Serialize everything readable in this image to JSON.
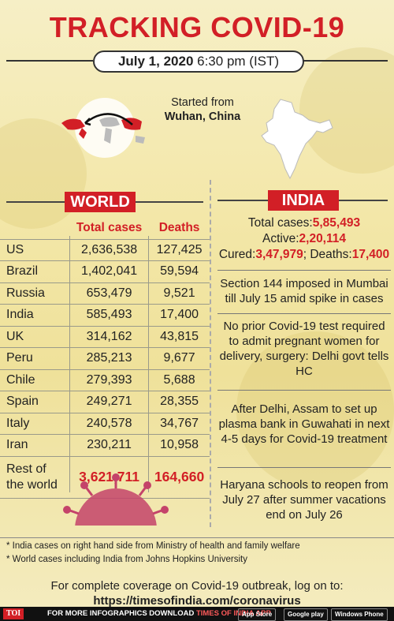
{
  "title": "TRACKING COVID-19",
  "date": {
    "bold": "July 1, 2020",
    "rest": " 6:30 pm (IST)"
  },
  "origin": {
    "line1": "Started from",
    "line2": "Wuhan, China"
  },
  "world": {
    "heading": "WORLD",
    "col_total": "Total cases",
    "col_deaths": "Deaths",
    "rows": [
      {
        "country": "US",
        "total": "2,636,538",
        "deaths": "127,425"
      },
      {
        "country": "Brazil",
        "total": "1,402,041",
        "deaths": "59,594"
      },
      {
        "country": "Russia",
        "total": "653,479",
        "deaths": "9,521"
      },
      {
        "country": "India",
        "total": "585,493",
        "deaths": "17,400"
      },
      {
        "country": "UK",
        "total": "314,162",
        "deaths": "43,815"
      },
      {
        "country": "Peru",
        "total": "285,213",
        "deaths": "9,677"
      },
      {
        "country": "Chile",
        "total": "279,393",
        "deaths": "5,688"
      },
      {
        "country": "Spain",
        "total": "249,271",
        "deaths": "28,355"
      },
      {
        "country": "Italy",
        "total": "240,578",
        "deaths": "34,767"
      },
      {
        "country": "Iran",
        "total": "230,211",
        "deaths": "10,958"
      }
    ],
    "rest_label_1": "Rest of",
    "rest_label_2": "the world",
    "rest_total": "3,621,711",
    "rest_deaths": "164,660"
  },
  "india": {
    "heading": "INDIA",
    "total_label": "Total cases:",
    "total_value": "5,85,493",
    "active_label": "Active:",
    "active_value": "2,20,114",
    "cured_label": "Cured:",
    "cured_value": "3,47,979",
    "deaths_label": "; Deaths:",
    "deaths_value": "17,400",
    "news": [
      "Section 144 imposed in Mumbai till July 15 amid spike in cases",
      "No prior Covid-19 test required to admit pregnant women for delivery, surgery: Delhi govt tells HC",
      "After Delhi, Assam to set up plasma bank in Guwahati in next 4-5 days for Covid-19 treatment",
      "Haryana schools to reopen from July 27 after summer vacations end on July 26"
    ]
  },
  "footnotes": [
    "* India cases on right hand side from Ministry of health and family welfare",
    "* World cases including India from Johns Hopkins University"
  ],
  "coverage": {
    "line1": "For complete coverage on Covid-19 outbreak, log on to:",
    "url": "https://timesofindia.com/coronavirus"
  },
  "bottom_bar": {
    "logo": "TOI",
    "text": "FOR MORE  INFOGRAPHICS DOWNLOAD ",
    "app": "TIMES OF INDIA  APP",
    "store1": "App Store",
    "store2": "Google play",
    "store3": "Windows Phone"
  },
  "colors": {
    "accent": "#d21f26",
    "background": "#f3e7a8"
  }
}
